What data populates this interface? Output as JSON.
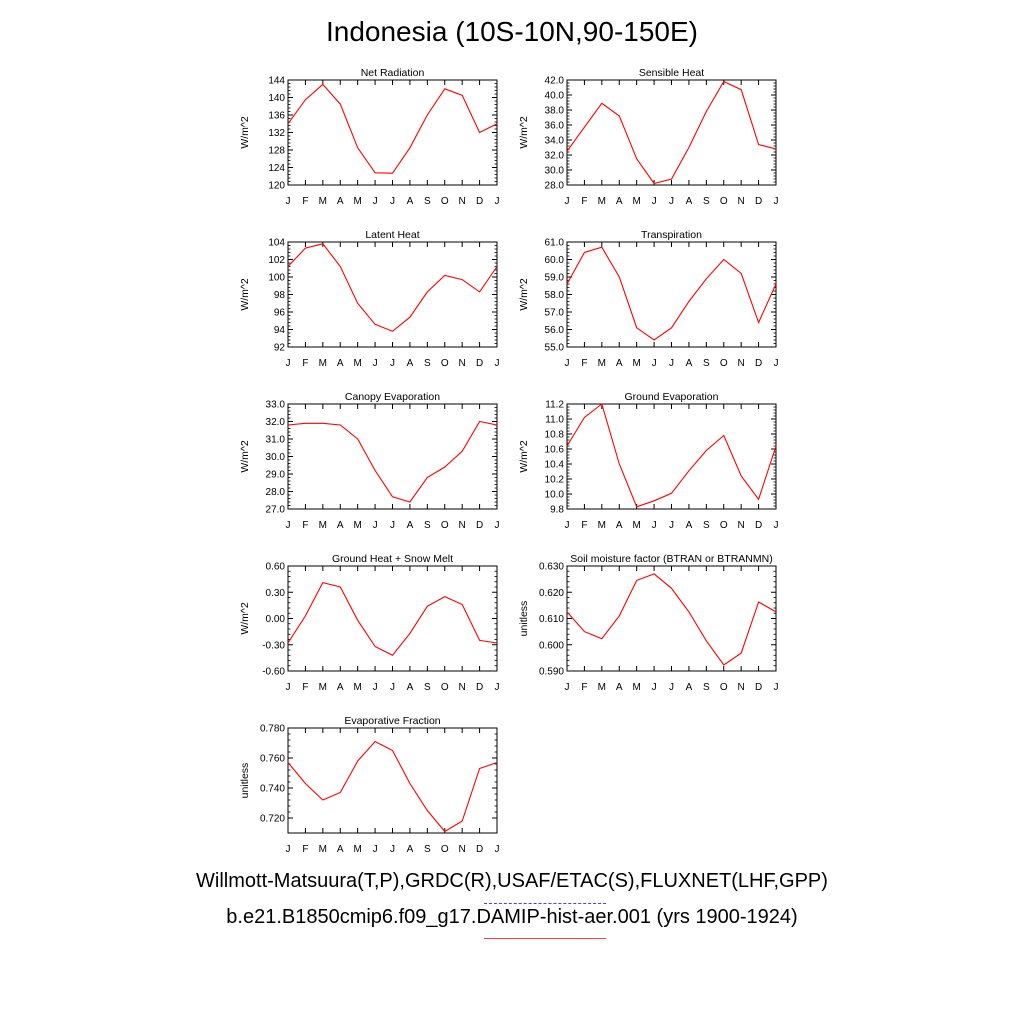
{
  "title": "Indonesia (10S-10N,90-150E)",
  "legend": {
    "observations": "Willmott-Matsuura(T,P),GRDC(R),USAF/ETAC(S),FLUXNET(LHF,GPP)",
    "model": "b.e21.B1850cmip6.f09_g17.DAMIP-hist-aer.001 (yrs 1900-1924)",
    "observations_color": "#4040ff",
    "model_color": "#ff0000"
  },
  "chart_data": [
    {
      "type": "line",
      "title": "Net Radiation",
      "ylabel": "W/m^2",
      "ylim": [
        120,
        144
      ],
      "yticks": [
        "120",
        "124",
        "128",
        "132",
        "136",
        "140",
        "144"
      ],
      "categories": [
        "J",
        "F",
        "M",
        "A",
        "M",
        "J",
        "J",
        "A",
        "S",
        "O",
        "N",
        "D",
        "J"
      ],
      "series": [
        {
          "values": [
            134,
            139.5,
            143,
            138.5,
            128.5,
            122.8,
            122.7,
            128.5,
            136,
            142,
            140.5,
            132,
            134
          ]
        }
      ]
    },
    {
      "type": "line",
      "title": "Sensible Heat",
      "ylabel": "W/m^2",
      "ylim": [
        28,
        42
      ],
      "yticks": [
        "28.0",
        "30.0",
        "32.0",
        "34.0",
        "36.0",
        "38.0",
        "40.0",
        "42.0"
      ],
      "categories": [
        "J",
        "F",
        "M",
        "A",
        "M",
        "J",
        "J",
        "A",
        "S",
        "O",
        "N",
        "D",
        "J"
      ],
      "series": [
        {
          "values": [
            32.5,
            35.7,
            38.9,
            37.2,
            31.5,
            28.2,
            28.8,
            33,
            37.8,
            41.8,
            40.7,
            33.4,
            32.8
          ]
        }
      ]
    },
    {
      "type": "line",
      "title": "Latent Heat",
      "ylabel": "W/m^2",
      "ylim": [
        92,
        104
      ],
      "yticks": [
        "92",
        "94",
        "96",
        "98",
        "100",
        "102",
        "104"
      ],
      "categories": [
        "J",
        "F",
        "M",
        "A",
        "M",
        "J",
        "J",
        "A",
        "S",
        "O",
        "N",
        "D",
        "J"
      ],
      "series": [
        {
          "values": [
            101.2,
            103.3,
            103.8,
            101.2,
            97,
            94.6,
            93.8,
            95.4,
            98.3,
            100.2,
            99.7,
            98.3,
            101.2
          ]
        }
      ]
    },
    {
      "type": "line",
      "title": "Transpiration",
      "ylabel": "W/m^2",
      "ylim": [
        55,
        61
      ],
      "yticks": [
        "55.0",
        "56.0",
        "57.0",
        "58.0",
        "59.0",
        "60.0",
        "61.0"
      ],
      "categories": [
        "J",
        "F",
        "M",
        "A",
        "M",
        "J",
        "J",
        "A",
        "S",
        "O",
        "N",
        "D",
        "J"
      ],
      "series": [
        {
          "values": [
            58.6,
            60.4,
            60.7,
            59,
            56.1,
            55.4,
            56.1,
            57.6,
            58.9,
            60,
            59.2,
            56.4,
            58.6
          ]
        }
      ]
    },
    {
      "type": "line",
      "title": "Canopy Evaporation",
      "ylabel": "W/m^2",
      "ylim": [
        27,
        33
      ],
      "yticks": [
        "27.0",
        "28.0",
        "29.0",
        "30.0",
        "31.0",
        "32.0",
        "33.0"
      ],
      "categories": [
        "J",
        "F",
        "M",
        "A",
        "M",
        "J",
        "J",
        "A",
        "S",
        "O",
        "N",
        "D",
        "J"
      ],
      "series": [
        {
          "values": [
            31.8,
            31.9,
            31.9,
            31.8,
            31,
            29.2,
            27.7,
            27.4,
            28.8,
            29.4,
            30.3,
            32,
            31.8
          ]
        }
      ]
    },
    {
      "type": "line",
      "title": "Ground Evaporation",
      "ylabel": "W/m^2",
      "ylim": [
        9.8,
        11.2
      ],
      "yticks": [
        "9.8",
        "10.0",
        "10.2",
        "10.4",
        "10.6",
        "10.8",
        "11.0",
        "11.2"
      ],
      "categories": [
        "J",
        "F",
        "M",
        "A",
        "M",
        "J",
        "J",
        "A",
        "S",
        "O",
        "N",
        "D",
        "J"
      ],
      "series": [
        {
          "values": [
            10.64,
            11.02,
            11.2,
            10.4,
            9.83,
            9.91,
            10.01,
            10.31,
            10.58,
            10.78,
            10.24,
            9.93,
            10.64
          ]
        }
      ]
    },
    {
      "type": "line",
      "title": "Ground Heat + Snow Melt",
      "ylabel": "W/m^2",
      "ylim": [
        -0.6,
        0.6
      ],
      "yticks": [
        "-0.60",
        "-0.30",
        "0.00",
        "0.30",
        "0.60"
      ],
      "categories": [
        "J",
        "F",
        "M",
        "A",
        "M",
        "J",
        "J",
        "A",
        "S",
        "O",
        "N",
        "D",
        "J"
      ],
      "series": [
        {
          "values": [
            -0.28,
            0.03,
            0.41,
            0.36,
            -0.02,
            -0.32,
            -0.42,
            -0.17,
            0.14,
            0.25,
            0.16,
            -0.25,
            -0.28
          ]
        }
      ]
    },
    {
      "type": "line",
      "title": "Soil moisture factor (BTRAN or BTRANMN)",
      "ylabel": "unitless",
      "ylim": [
        0.59,
        0.63
      ],
      "yticks": [
        "0.590",
        "0.600",
        "0.610",
        "0.620",
        "0.630"
      ],
      "categories": [
        "J",
        "F",
        "M",
        "A",
        "M",
        "J",
        "J",
        "A",
        "S",
        "O",
        "N",
        "D",
        "J"
      ],
      "series": [
        {
          "values": [
            0.6125,
            0.605,
            0.6023,
            0.611,
            0.6245,
            0.627,
            0.6215,
            0.6125,
            0.6015,
            0.5923,
            0.5968,
            0.6163,
            0.6125
          ]
        }
      ]
    },
    {
      "type": "line",
      "title": "Evaporative Fraction",
      "ylabel": "unitless",
      "ylim": [
        0.71,
        0.78
      ],
      "yticks": [
        "0.720",
        "0.740",
        "0.760",
        "0.780"
      ],
      "categories": [
        "J",
        "F",
        "M",
        "A",
        "M",
        "J",
        "J",
        "A",
        "S",
        "O",
        "N",
        "D",
        "J"
      ],
      "series": [
        {
          "values": [
            0.757,
            0.743,
            0.732,
            0.737,
            0.758,
            0.771,
            0.765,
            0.743,
            0.725,
            0.711,
            0.718,
            0.753,
            0.757
          ]
        }
      ]
    }
  ]
}
